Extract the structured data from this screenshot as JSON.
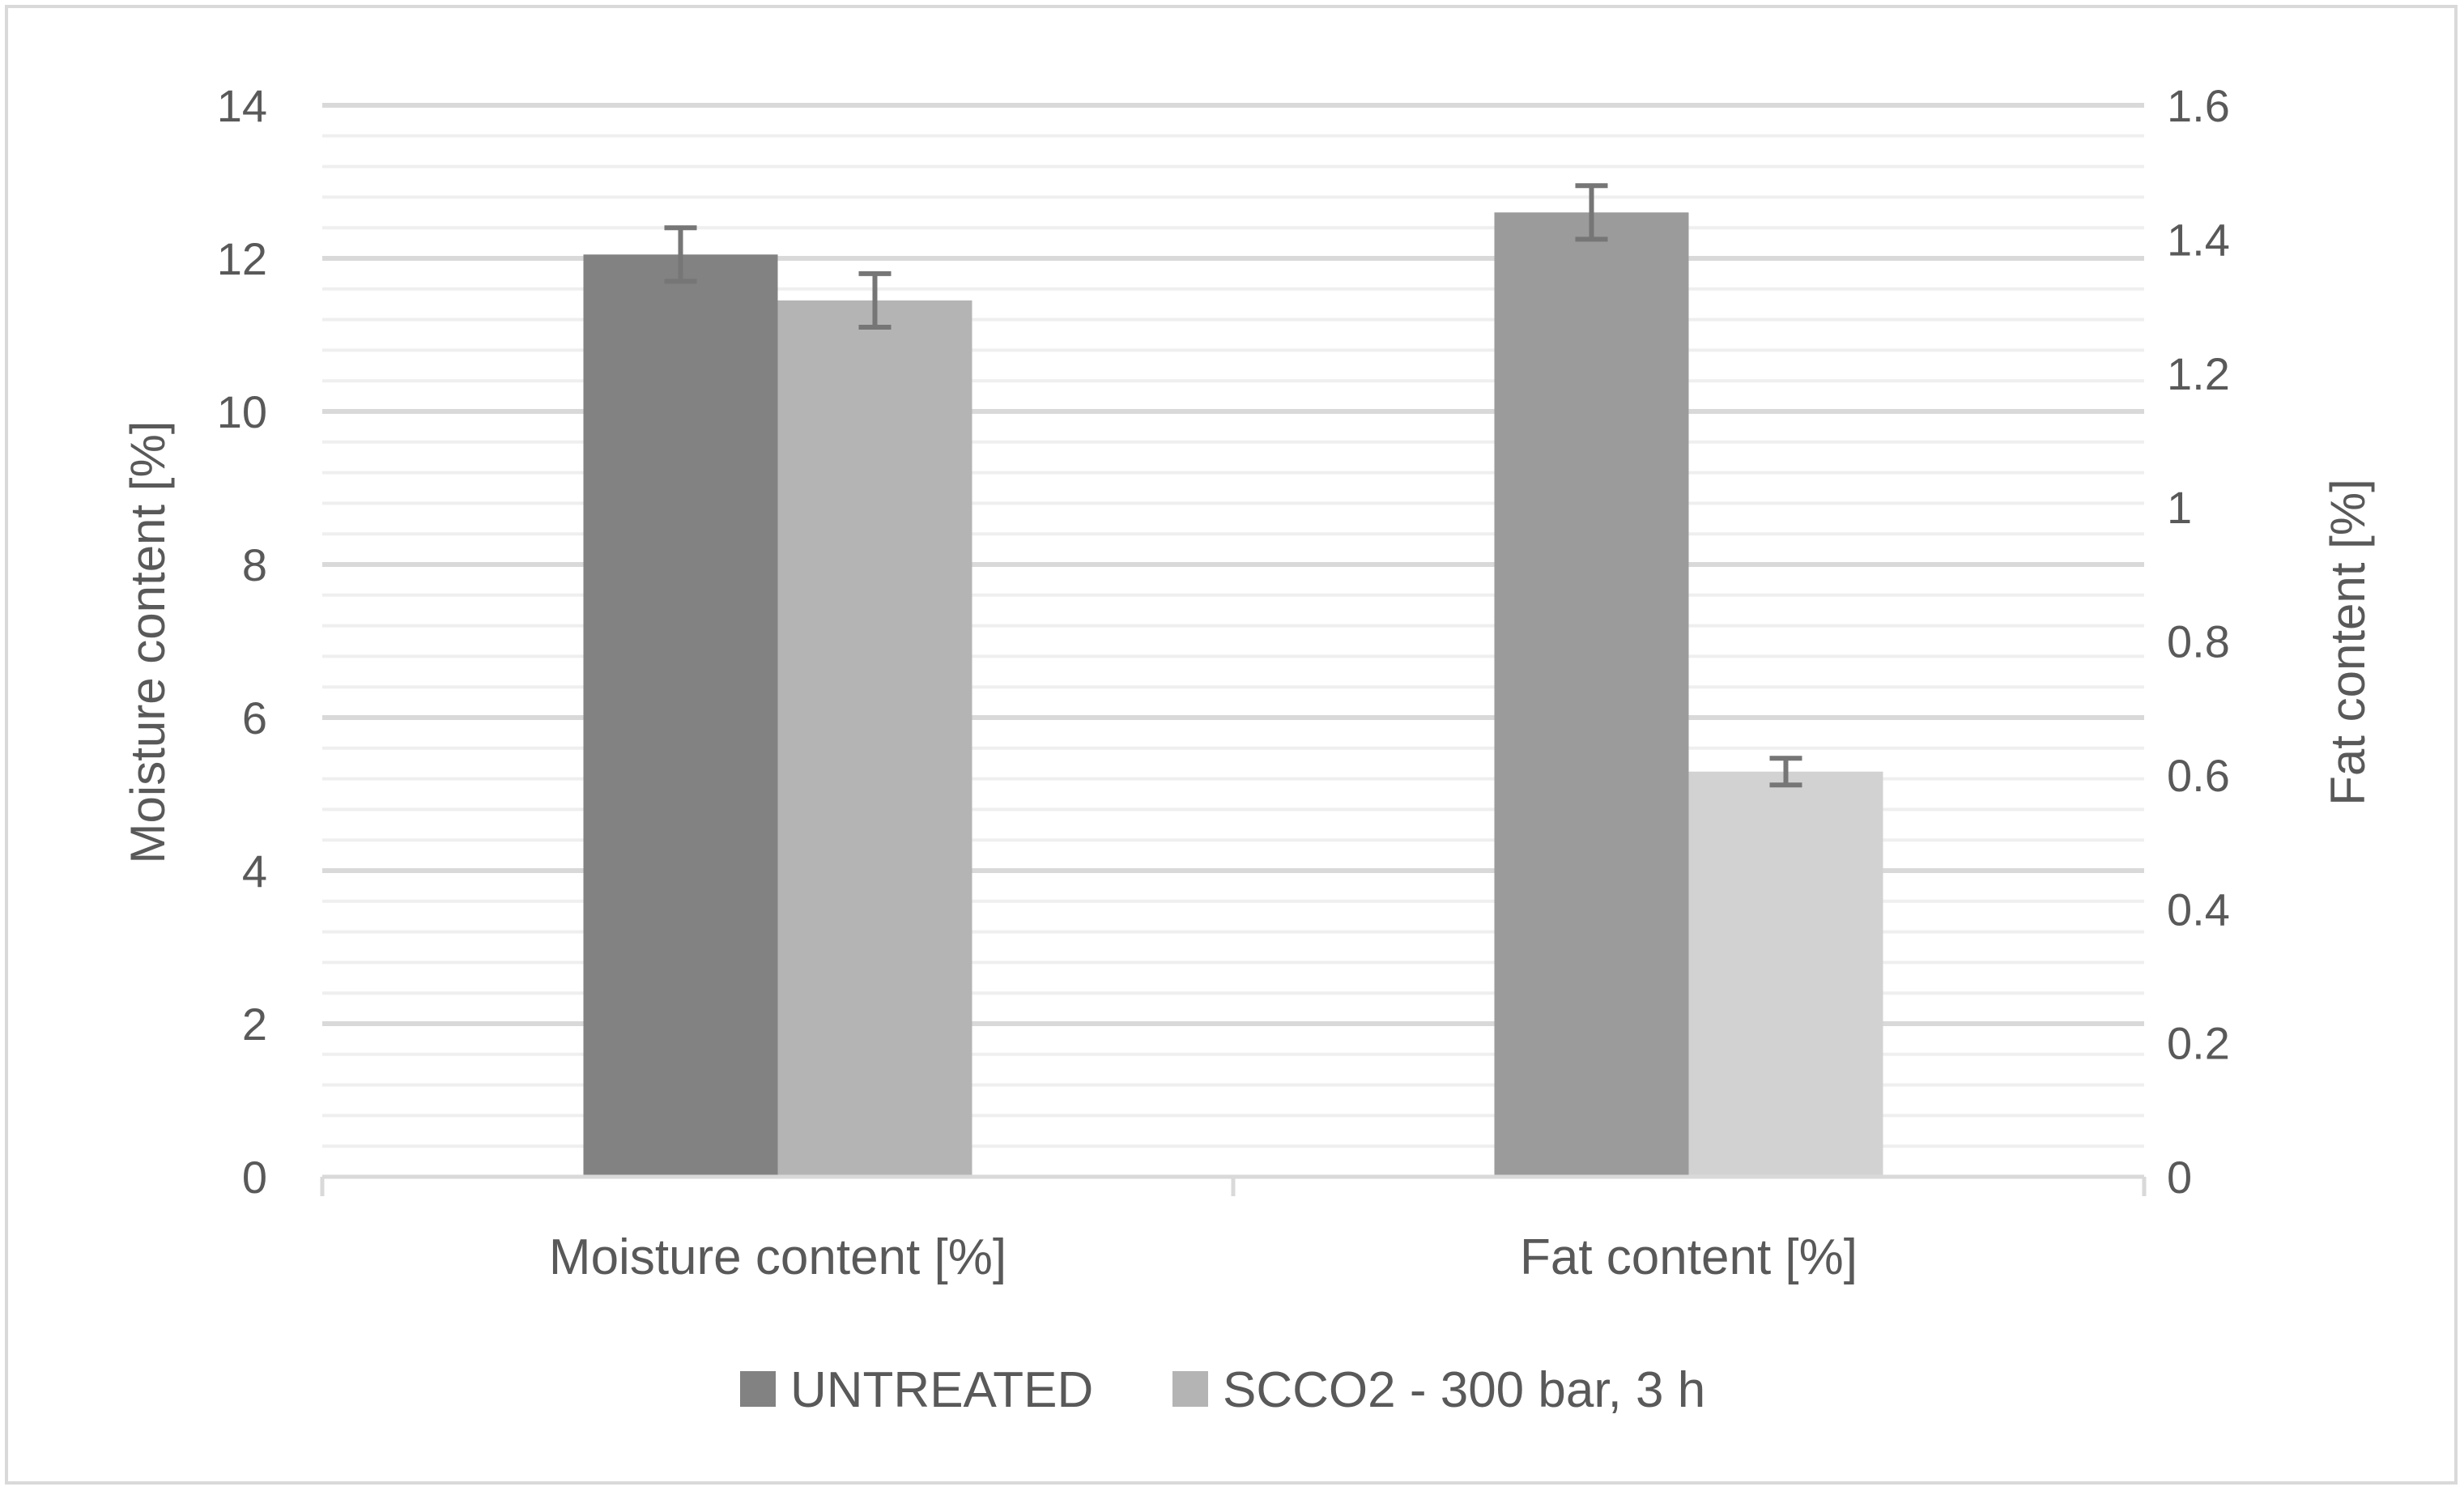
{
  "chart_data": {
    "type": "bar",
    "categories": [
      "Moisture content [%]",
      "Fat content [%]"
    ],
    "series": [
      {
        "name": "UNTREATED",
        "color": "#828282",
        "color_secondary": "#9b9b9b",
        "values": [
          12.05,
          1.44
        ],
        "errors": [
          0.35,
          0.04
        ],
        "axis": [
          "left",
          "right"
        ]
      },
      {
        "name": "SCCO2 - 300 bar, 3 h",
        "color": "#b4b4b4",
        "color_secondary": "#d2d2d2",
        "values": [
          11.45,
          0.605
        ],
        "errors": [
          0.35,
          0.02
        ],
        "axis": [
          "left",
          "right"
        ]
      }
    ],
    "ylabel": "Moisture content [%]",
    "y2label": "Fat content [%]",
    "ylim": [
      0,
      14
    ],
    "y2lim": [
      0,
      1.6
    ],
    "yticks": [
      "0",
      "2",
      "4",
      "6",
      "8",
      "10",
      "12",
      "14"
    ],
    "y2ticks": [
      "0",
      "0.2",
      "0.4",
      "0.6",
      "0.8",
      "1",
      "1.2",
      "1.4",
      "1.6"
    ],
    "grid": true,
    "legend": "bottom"
  }
}
